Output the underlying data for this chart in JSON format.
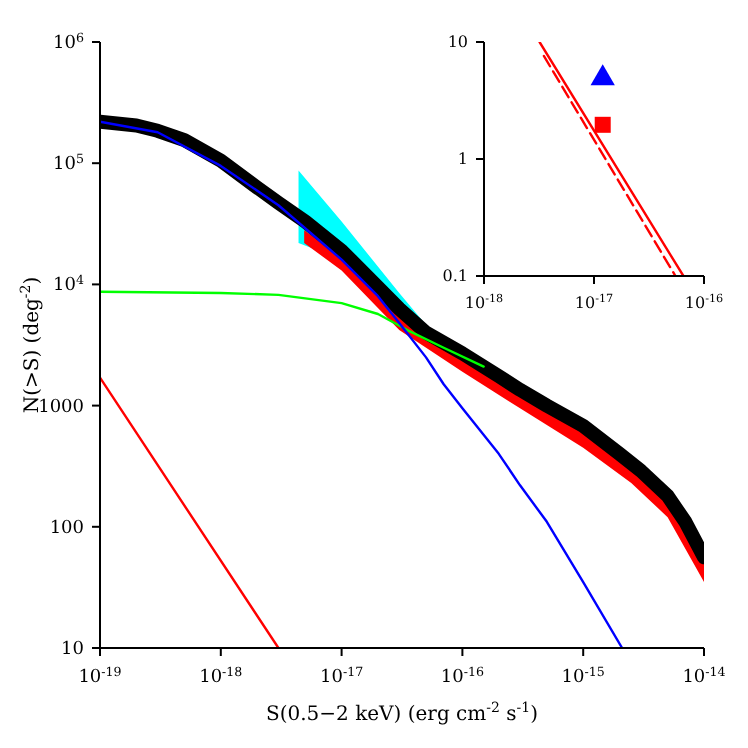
{
  "chart_data": [
    {
      "type": "line",
      "xlabel": "S(0.5−2 keV) (erg cm$^{-2}$ s$^{-1}$)",
      "ylabel": "N(>S) (deg$^{-2}$)",
      "log": "xy",
      "grid": false,
      "legend": false,
      "xlim": [
        1e-19,
        1e-14
      ],
      "ylim": [
        10,
        1000000
      ],
      "xticks": [
        {
          "value": 1e-19,
          "label": "10$^{-19}$"
        },
        {
          "value": 1e-18,
          "label": "10$^{-18}$"
        },
        {
          "value": 1e-17,
          "label": "10$^{-17}$"
        },
        {
          "value": 1e-16,
          "label": "10$^{-16}$"
        },
        {
          "value": 1e-15,
          "label": "10$^{-15}$"
        },
        {
          "value": 1e-14,
          "label": "10$^{-14}$"
        }
      ],
      "yticks": [
        10,
        100,
        1000,
        {
          "value": 10000,
          "label": "10$^{4}$"
        },
        {
          "value": 100000,
          "label": "10$^{5}$"
        },
        {
          "value": 1000000,
          "label": "10$^{6}$"
        }
      ],
      "series": [
        {
          "type": "area",
          "color": "#00ffff",
          "x": [
            4.4e-18,
            1e-17,
            3e-17,
            7.4e-17
          ],
          "values": [
            null,
            null,
            null,
            null
          ],
          "lower": [
            22000,
            16000,
            6000,
            2600
          ],
          "upper": [
            87000,
            33000,
            8500,
            2900
          ]
        },
        {
          "type": "area",
          "color": "#ff0000",
          "x": [
            4.9e-18,
            1e-17,
            3e-17,
            1e-16,
            3e-16,
            1e-15,
            2.5e-15,
            5e-15,
            1e-14
          ],
          "values": [
            null,
            null,
            null,
            null,
            null,
            null,
            null,
            null,
            null
          ],
          "lower": [
            22000,
            13000,
            4200,
            1900,
            950,
            450,
            230,
            120,
            35
          ],
          "upper": [
            28000,
            17000,
            5500,
            2500,
            1300,
            650,
            330,
            200,
            55
          ]
        },
        {
          "type": "line",
          "color": "#000000",
          "x": [
            1e-19,
            2e-19,
            3e-19,
            5e-19,
            1e-18,
            2e-18,
            3e-18,
            5e-18,
            1e-17,
            2e-17,
            3e-17,
            5e-17,
            1e-16,
            2e-16,
            3e-16,
            5e-16,
            1e-15,
            2e-15,
            3e-15,
            5e-15,
            7e-15,
            1e-14
          ],
          "values": [
            220000,
            205000,
            185000,
            155000,
            105000,
            63000,
            47000,
            33000,
            19000,
            9500,
            6300,
            4000,
            2700,
            1750,
            1350,
            1000,
            680,
            400,
            290,
            180,
            110,
            56
          ]
        },
        {
          "type": "line",
          "color": "#00ff00",
          "x": [
            1e-19,
            1e-18,
            3e-18,
            1e-17,
            2e-17,
            3.5e-17,
            7e-17,
            1.5e-16
          ],
          "values": [
            8700,
            8500,
            8200,
            7000,
            5700,
            4200,
            3000,
            2100
          ]
        },
        {
          "type": "line",
          "color": "#0000ff",
          "x": [
            1e-19,
            3e-19,
            1e-18,
            3e-18,
            1e-17,
            2e-17,
            3e-17,
            5e-17,
            7e-17,
            1e-16,
            2e-16,
            3e-16,
            5e-16,
            1e-15,
            2.1e-15
          ],
          "values": [
            220000,
            180000,
            95000,
            45000,
            16000,
            8000,
            4800,
            2500,
            1500,
            950,
            400,
            220,
            110,
            35,
            10
          ]
        },
        {
          "type": "line",
          "color": "#ff0000",
          "x": [
            1e-19,
            3e-18
          ],
          "values": [
            1700,
            10
          ]
        }
      ]
    },
    {
      "type": "line",
      "log": "xy",
      "grid": false,
      "legend": false,
      "xlim": [
        1e-18,
        1e-16
      ],
      "ylim": [
        0.1,
        10
      ],
      "xticks": [
        {
          "value": 1e-18,
          "label": "10$^{-18}$"
        },
        {
          "value": 1e-17,
          "label": "10$^{-17}$"
        },
        {
          "value": 1e-16,
          "label": "10$^{-16}$"
        }
      ],
      "yticks": [
        0.1,
        1,
        10
      ],
      "series": [
        {
          "type": "line",
          "color": "#ff0000",
          "x": [
            3.2e-18,
            6.5e-17
          ],
          "values": [
            10,
            0.1
          ]
        },
        {
          "type": "line",
          "color": "#ff0000",
          "line_style": "dashed",
          "x": [
            3.5e-18,
            5.5e-17
          ],
          "values": [
            7.6,
            0.1
          ]
        },
        {
          "type": "scatter",
          "color": "#0000ff",
          "marker": "triangle",
          "x": [
            1.2e-17
          ],
          "values": [
            4.9
          ]
        },
        {
          "type": "scatter",
          "color": "#ff0000",
          "marker": "square",
          "x": [
            1.2e-17
          ],
          "values": [
            1.96
          ]
        }
      ]
    }
  ]
}
